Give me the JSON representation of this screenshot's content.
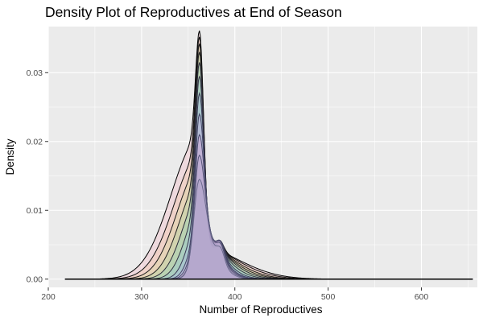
{
  "chart_data": {
    "type": "area",
    "title": "Density Plot of Reproductives at End of Season",
    "xlabel": "Number of Reproductives",
    "ylabel": "Density",
    "xlim": [
      200,
      660
    ],
    "ylim": [
      -0.0012,
      0.0367
    ],
    "x_ticks": [
      "200",
      "300",
      "400",
      "500",
      "600"
    ],
    "x_tick_values": [
      200,
      300,
      400,
      500,
      600
    ],
    "y_ticks": [
      "0.00",
      "0.01",
      "0.02",
      "0.03"
    ],
    "y_tick_values": [
      0,
      0.01,
      0.02,
      0.03
    ],
    "grid": true,
    "legend": "none",
    "x_range_data": [
      218,
      655
    ],
    "panel_background": "#ebebeb",
    "grid_color": "#ffffff",
    "series": [
      {
        "mode": 362,
        "peak": 0.0361,
        "left_sd": 4.0,
        "right_sd": 4.5,
        "shoulder_sd": 30,
        "shoulder_amp": 0.0205,
        "tail_sd": 42,
        "tail_amp": 0.0046,
        "fill": "#f4b6c2",
        "stroke": "#000000"
      },
      {
        "mode": 362,
        "peak": 0.0352,
        "left_sd": 4.0,
        "right_sd": 4.5,
        "shoulder_sd": 27,
        "shoulder_amp": 0.018,
        "tail_sd": 38,
        "tail_amp": 0.0048,
        "fill": "#f0c3a0",
        "stroke": "#111111"
      },
      {
        "mode": 362,
        "peak": 0.0342,
        "left_sd": 4.0,
        "right_sd": 4.5,
        "shoulder_sd": 24,
        "shoulder_amp": 0.016,
        "tail_sd": 34,
        "tail_amp": 0.005,
        "fill": "#d6d79b",
        "stroke": "#1a1a1a"
      },
      {
        "mode": 362,
        "peak": 0.033,
        "left_sd": 4.0,
        "right_sd": 4.5,
        "shoulder_sd": 21,
        "shoulder_amp": 0.014,
        "tail_sd": 31,
        "tail_amp": 0.0052,
        "fill": "#a9d39b",
        "stroke": "#222222"
      },
      {
        "mode": 362,
        "peak": 0.0315,
        "left_sd": 4.0,
        "right_sd": 4.5,
        "shoulder_sd": 18,
        "shoulder_amp": 0.012,
        "tail_sd": 28,
        "tail_amp": 0.0056,
        "fill": "#8fd1b9",
        "stroke": "#2b2b3b"
      },
      {
        "mode": 362,
        "peak": 0.0295,
        "left_sd": 4.0,
        "right_sd": 4.6,
        "shoulder_sd": 15,
        "shoulder_amp": 0.01,
        "tail_sd": 25,
        "tail_amp": 0.006,
        "fill": "#8ec8d6",
        "stroke": "#333344"
      },
      {
        "mode": 362,
        "peak": 0.027,
        "left_sd": 4.0,
        "right_sd": 4.8,
        "shoulder_sd": 12,
        "shoulder_amp": 0.0085,
        "tail_sd": 22,
        "tail_amp": 0.0065,
        "fill": "#a6b6e6",
        "stroke": "#3a3a55"
      },
      {
        "mode": 362,
        "peak": 0.024,
        "left_sd": 4.0,
        "right_sd": 5.0,
        "shoulder_sd": 10,
        "shoulder_amp": 0.007,
        "tail_sd": 20,
        "tail_amp": 0.007,
        "fill": "#c7a7e3",
        "stroke": "#444466"
      },
      {
        "mode": 362,
        "peak": 0.021,
        "left_sd": 4.2,
        "right_sd": 5.2,
        "shoulder_sd": 9,
        "shoulder_amp": 0.006,
        "tail_sd": 19,
        "tail_amp": 0.0072,
        "fill": "#d9a0d5",
        "stroke": "#4d4d70"
      },
      {
        "mode": 362,
        "peak": 0.018,
        "left_sd": 4.5,
        "right_sd": 5.5,
        "shoulder_sd": 8,
        "shoulder_amp": 0.0055,
        "tail_sd": 18,
        "tail_amp": 0.0072,
        "fill": "#b7a2cf",
        "stroke": "#565678"
      },
      {
        "mode": 362,
        "peak": 0.0145,
        "left_sd": 5.0,
        "right_sd": 6.0,
        "shoulder_sd": 8,
        "shoulder_amp": 0.0045,
        "tail_sd": 17,
        "tail_amp": 0.0068,
        "fill": "#a6a0c7",
        "stroke": "#6a6a8c"
      }
    ]
  }
}
